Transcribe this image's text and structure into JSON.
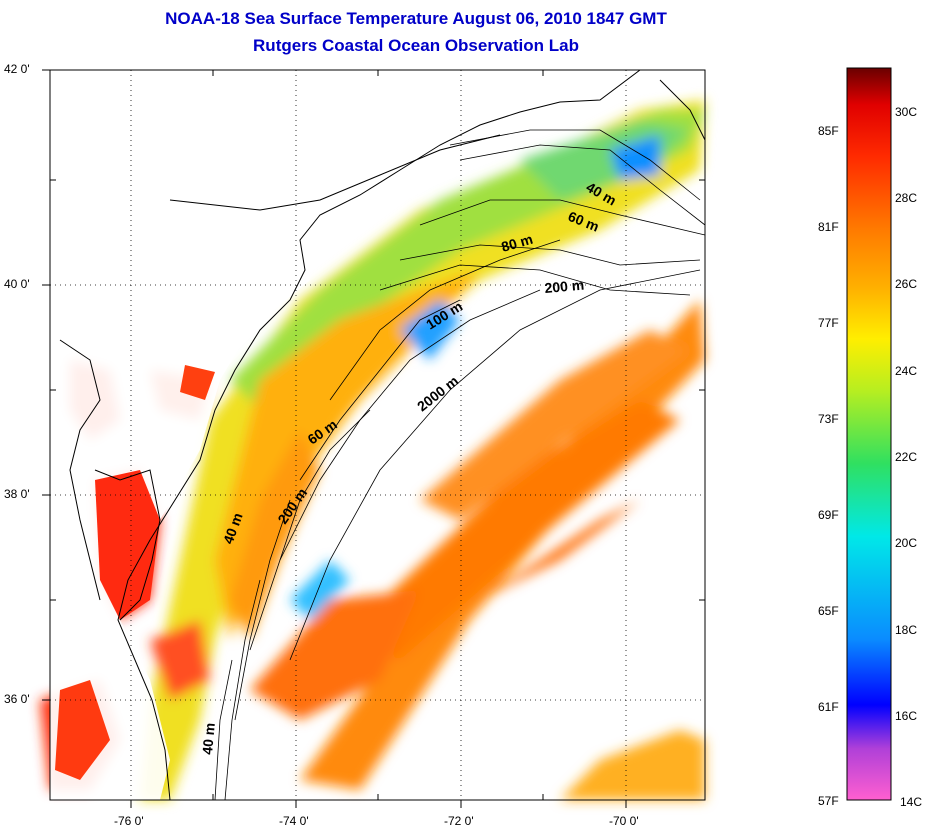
{
  "title": {
    "line1": "NOAA-18 Sea Surface Temperature August 06, 2010 1847 GMT",
    "line2": "Rutgers Coastal Ocean Observation Lab"
  },
  "map": {
    "lat_ticks": [
      "42 0'",
      "40 0'",
      "38 0'",
      "36 0'"
    ],
    "lon_ticks": [
      "-76 0'",
      "-74 0'",
      "-72 0'",
      "-70 0'"
    ],
    "contour_labels": [
      "40 m",
      "60 m",
      "80 m",
      "200 m",
      "100 m",
      "2000 m",
      "60 m",
      "200 m",
      "40 m",
      "40 m"
    ]
  },
  "colorbar": {
    "fahrenheit": [
      "85F",
      "81F",
      "77F",
      "73F",
      "69F",
      "65F",
      "61F",
      "57F"
    ],
    "celsius": [
      "30C",
      "28C",
      "26C",
      "24C",
      "22C",
      "20C",
      "18C",
      "16C",
      "14C"
    ],
    "colors": [
      "#ff5fd0",
      "#b040d8",
      "#0000ff",
      "#0a8cff",
      "#00e8e8",
      "#30e060",
      "#b8ee20",
      "#ffee00",
      "#ffb000",
      "#ff7a00",
      "#ff2a00",
      "#e00000",
      "#6a0000"
    ]
  }
}
